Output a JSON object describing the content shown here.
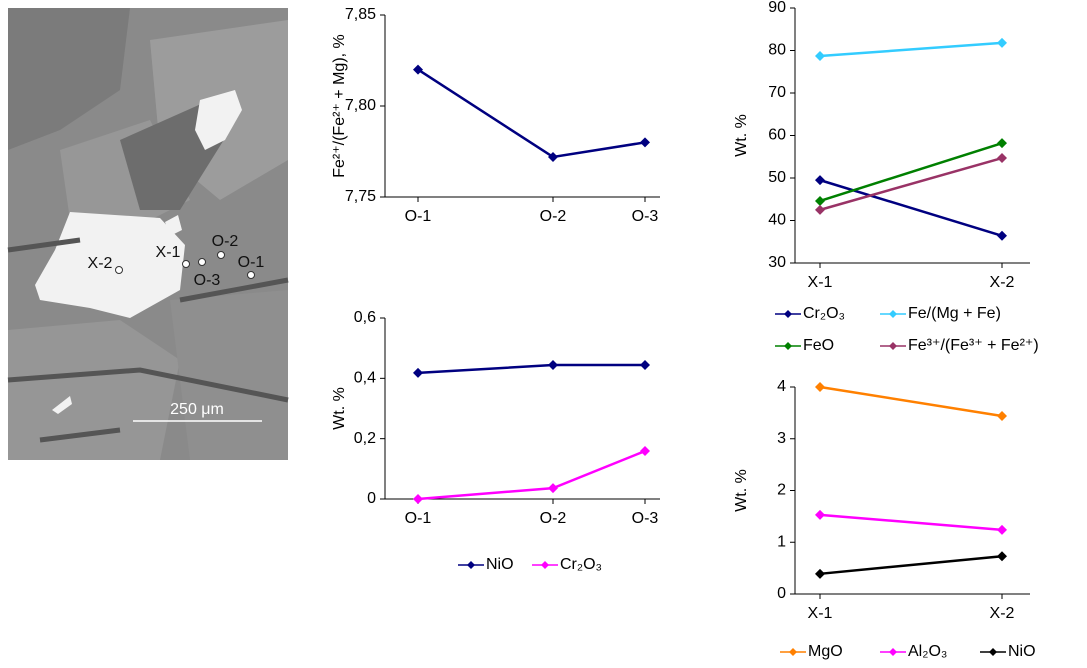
{
  "image": {
    "point_labels": [
      "X-2",
      "X-1",
      "O-2",
      "O-3",
      "O-1"
    ],
    "scale_bar": "250 μm"
  },
  "chart_data": [
    {
      "type": "line",
      "ylabel": "Fe²⁺/(Fe²⁺ + Mg), %",
      "categories": [
        "O-1",
        "O-2",
        "O-3"
      ],
      "series": [
        {
          "color": "#000080",
          "values": [
            7.82,
            7.772,
            7.78
          ]
        }
      ],
      "ylim": [
        7.75,
        7.85
      ],
      "yticks": [
        {
          "value": 7.75,
          "label": "7,75"
        },
        {
          "value": 7.8,
          "label": "7,80"
        },
        {
          "value": 7.85,
          "label": "7,85"
        }
      ]
    },
    {
      "type": "line",
      "ylabel": "Wt. %",
      "categories": [
        "O-1",
        "O-2",
        "O-3"
      ],
      "series": [
        {
          "name": "NiO",
          "color": "#000080",
          "values": [
            0.418,
            0.444,
            0.444
          ]
        },
        {
          "name": "Cr₂O₃",
          "color": "#ff00ff",
          "values": [
            0,
            0.036,
            0.159
          ]
        }
      ],
      "ylim": [
        0,
        0.6
      ],
      "yticks": [
        0,
        {
          "value": 0.2,
          "label": "0,2"
        },
        {
          "value": 0.4,
          "label": "0,4"
        },
        {
          "value": 0.6,
          "label": "0,6"
        }
      ],
      "legend": "bottom"
    },
    {
      "type": "line",
      "ylabel": "Wt. %",
      "categories": [
        "X-1",
        "X-2"
      ],
      "series": [
        {
          "name": "Cr₂O₃",
          "color": "#000080",
          "values": [
            49.5,
            36.4
          ]
        },
        {
          "name": "Fe/(Mg + Fe)",
          "color": "#33ccff",
          "values": [
            78.7,
            81.8
          ]
        },
        {
          "name": "FeO",
          "color": "#008000",
          "values": [
            44.6,
            58.2
          ]
        },
        {
          "name": "Fe³⁺/(Fe³⁺ + Fe²⁺)",
          "color": "#993366",
          "values": [
            42.5,
            54.7
          ]
        }
      ],
      "ylim": [
        30,
        90
      ],
      "yticks": [
        30,
        40,
        50,
        60,
        70,
        80,
        90
      ],
      "legend": "bottom"
    },
    {
      "type": "line",
      "ylabel": "Wt. %",
      "categories": [
        "X-1",
        "X-2"
      ],
      "series": [
        {
          "name": "MgO",
          "color": "#ff8000",
          "values": [
            4.0,
            3.44
          ]
        },
        {
          "name": "Al₂O₃",
          "color": "#ff00ff",
          "values": [
            1.53,
            1.24
          ]
        },
        {
          "name": "NiO",
          "color": "#000000",
          "values": [
            0.39,
            0.73
          ]
        }
      ],
      "ylim": [
        0,
        4
      ],
      "yticks": [
        0,
        1,
        2,
        3,
        4
      ],
      "legend": "bottom"
    }
  ]
}
